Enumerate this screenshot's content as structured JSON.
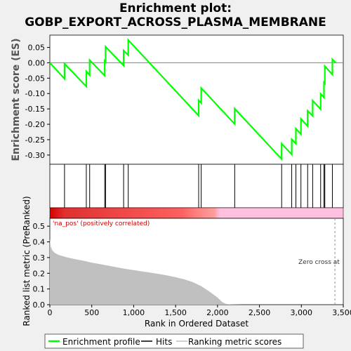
{
  "title_line1": "Enrichment plot:",
  "title_line2": "GOBP_EXPORT_ACROSS_PLASMA_MEMBRANE",
  "colors": {
    "profile": "#00ff00",
    "hits": "#000000",
    "metric_fill": "#c0c0c0",
    "pos_label": "#cc0000",
    "zero_line": "#808080",
    "background": "#f0f0f0"
  },
  "chart_data": {
    "type": "line",
    "xlabel": "Rank in Ordered Dataset",
    "es_ylabel": "Enrichment score (ES)",
    "metric_ylabel": "Ranked list metric (PreRanked)",
    "xlim": [
      0,
      3500
    ],
    "es_ylim": [
      -0.33,
      0.09
    ],
    "metric_ylim": [
      0,
      0.55
    ],
    "x_ticks": [
      0,
      500,
      1000,
      1500,
      2000,
      2500,
      3000,
      3500
    ],
    "x_tick_labels": [
      "0",
      "500",
      "1,000",
      "1,500",
      "2,000",
      "2,500",
      "3,000",
      "3,500"
    ],
    "es_ticks": [
      0.05,
      0.0,
      -0.05,
      -0.1,
      -0.15,
      -0.2,
      -0.25,
      -0.3
    ],
    "es_tick_labels": [
      "0.05",
      "0.00",
      "-0.05",
      "-0.10",
      "-0.15",
      "-0.20",
      "-0.25",
      "-0.30"
    ],
    "metric_ticks": [
      0.0,
      0.1,
      0.2,
      0.3,
      0.4,
      0.5
    ],
    "metric_tick_labels": [
      "0.0",
      "0.1",
      "0.2",
      "0.3",
      "0.4",
      "0.5"
    ],
    "hits": [
      175,
      435,
      475,
      655,
      665,
      880,
      935,
      1775,
      1805,
      2205,
      2765,
      2885,
      2935,
      2995,
      3075,
      3135,
      3230,
      3270,
      3280,
      3370
    ],
    "es_profile": {
      "x": [
        0,
        175,
        175,
        435,
        435,
        475,
        475,
        655,
        655,
        665,
        665,
        880,
        880,
        935,
        935,
        1775,
        1775,
        1805,
        1805,
        2205,
        2205,
        2765,
        2765,
        2885,
        2885,
        2935,
        2935,
        2995,
        2995,
        3075,
        3075,
        3135,
        3135,
        3230,
        3230,
        3270,
        3270,
        3280,
        3280,
        3370,
        3370,
        3410
      ],
      "y": [
        0.0,
        -0.052,
        -0.003,
        -0.077,
        -0.028,
        -0.04,
        0.009,
        -0.042,
        0.006,
        0.003,
        0.052,
        -0.009,
        0.04,
        0.025,
        0.074,
        -0.172,
        -0.122,
        -0.131,
        -0.082,
        -0.199,
        -0.149,
        -0.313,
        -0.263,
        -0.298,
        -0.249,
        -0.263,
        -0.214,
        -0.232,
        -0.182,
        -0.206,
        -0.156,
        -0.173,
        -0.123,
        -0.151,
        -0.101,
        -0.113,
        -0.064,
        -0.067,
        -0.011,
        -0.038,
        0.011,
        0.0
      ]
    },
    "metric_profile": {
      "x": [
        0,
        10,
        30,
        60,
        100,
        150,
        200,
        300,
        400,
        500,
        600,
        700,
        800,
        900,
        1000,
        1100,
        1200,
        1300,
        1400,
        1500,
        1600,
        1700,
        1800,
        1900,
        2000,
        2060,
        2100,
        2150,
        2200,
        2300,
        2400,
        3400
      ],
      "y": [
        0.42,
        0.37,
        0.345,
        0.33,
        0.318,
        0.31,
        0.302,
        0.29,
        0.28,
        0.268,
        0.258,
        0.248,
        0.238,
        0.228,
        0.22,
        0.212,
        0.204,
        0.196,
        0.186,
        0.175,
        0.162,
        0.145,
        0.12,
        0.085,
        0.045,
        0.015,
        0.006,
        0.002,
        0.001,
        0.0,
        0.0,
        0.0
      ]
    },
    "zero_cross": 3400,
    "pos_label": "'na_pos' (positively correlated)",
    "zero_cross_label": "Zero cross at"
  },
  "legend": {
    "position": "bottom",
    "items": [
      {
        "label": "Enrichment profile",
        "color": "#00ff00"
      },
      {
        "label": "Hits",
        "color": "#000000"
      },
      {
        "label": "Ranking metric scores",
        "color": "#c0c0c0"
      }
    ]
  }
}
